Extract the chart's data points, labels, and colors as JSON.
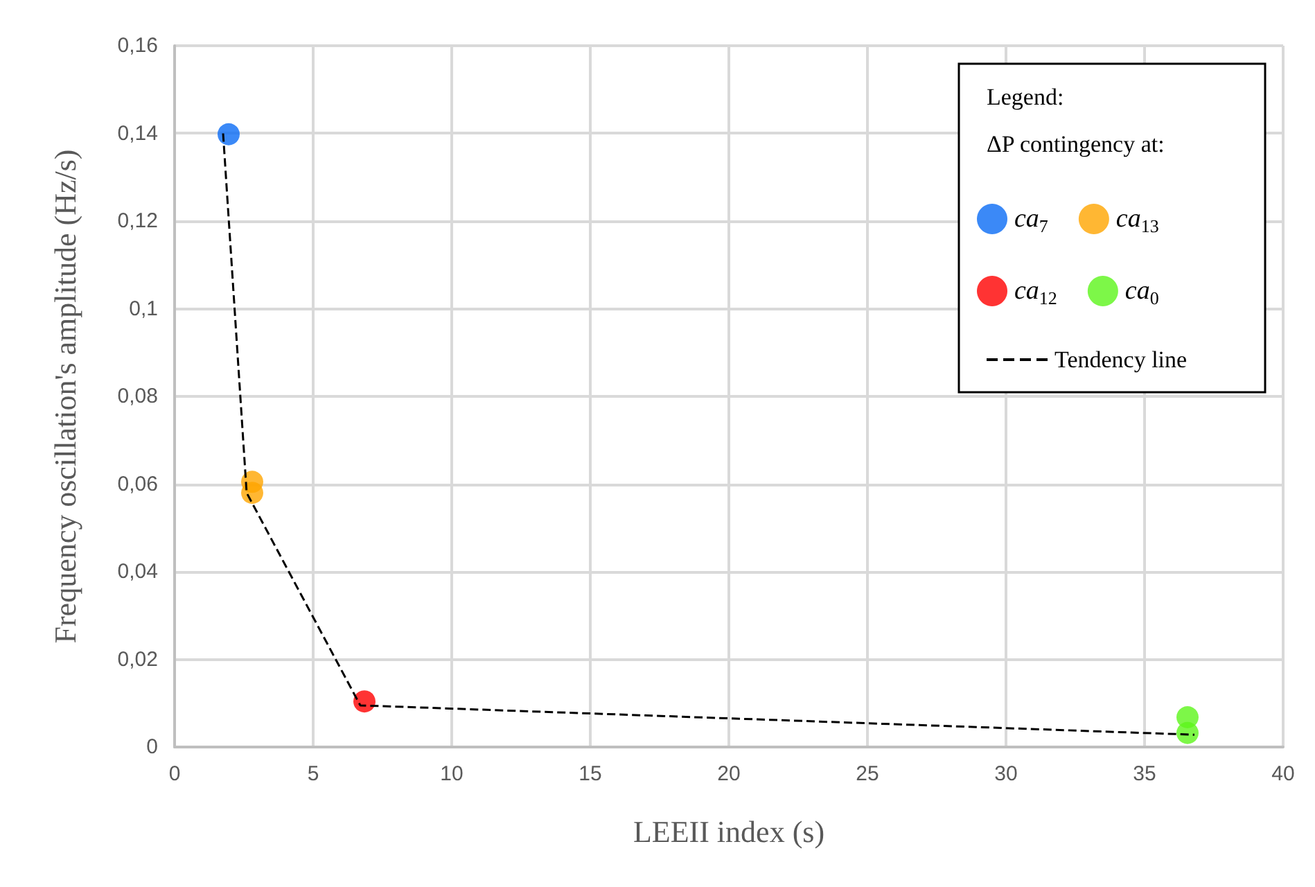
{
  "chart_data": {
    "type": "scatter",
    "xlabel": "LEEII index (s)",
    "ylabel": "Frequency oscillation's amplitude (Hz/s)",
    "legend_title": "ΔP contingency at:",
    "annotations": [
      "Legend:"
    ],
    "xlim": [
      0,
      40
    ],
    "xticks": [
      0,
      5,
      10,
      15,
      20,
      25,
      30,
      35,
      40
    ],
    "ylim": [
      0,
      0.16
    ],
    "yticks": [
      {
        "value": 0,
        "label": "0"
      },
      {
        "value": 0.02,
        "label": "0,02"
      },
      {
        "value": 0.04,
        "label": "0,04"
      },
      {
        "value": 0.06,
        "label": "0,06"
      },
      {
        "value": 0.08,
        "label": "0,08"
      },
      {
        "value": 0.1,
        "label": "0,1"
      },
      {
        "value": 0.12,
        "label": "0,12"
      },
      {
        "value": 0.14,
        "label": "0,14"
      },
      {
        "value": 0.16,
        "label": "0,16"
      }
    ],
    "grid": true,
    "legend": "top right",
    "marker": "circle",
    "series": [
      {
        "name": "ca$_{7}$",
        "color": "#0a6cf5",
        "x": [
          1.95
        ],
        "values": [
          0.1398
        ]
      },
      {
        "name": "ca$_{13}$",
        "color": "#ffa500",
        "x": [
          2.8,
          2.8
        ],
        "values": [
          0.0605,
          0.058
        ]
      },
      {
        "name": "ca$_{12}$",
        "color": "#ff0000",
        "x": [
          6.85
        ],
        "values": [
          0.0104
        ]
      },
      {
        "name": "ca$_{0}$",
        "color": "#5cf51a",
        "x": [
          36.55,
          36.55
        ],
        "values": [
          0.0068,
          0.0032
        ]
      },
      {
        "name": "Tendency line",
        "type": "line",
        "color": "#000000",
        "line_style": "dashed",
        "marker": "none",
        "x": [
          1.75,
          2.6,
          6.7,
          36.8
        ],
        "values": [
          0.14,
          0.058,
          0.0095,
          0.0028
        ]
      }
    ]
  }
}
